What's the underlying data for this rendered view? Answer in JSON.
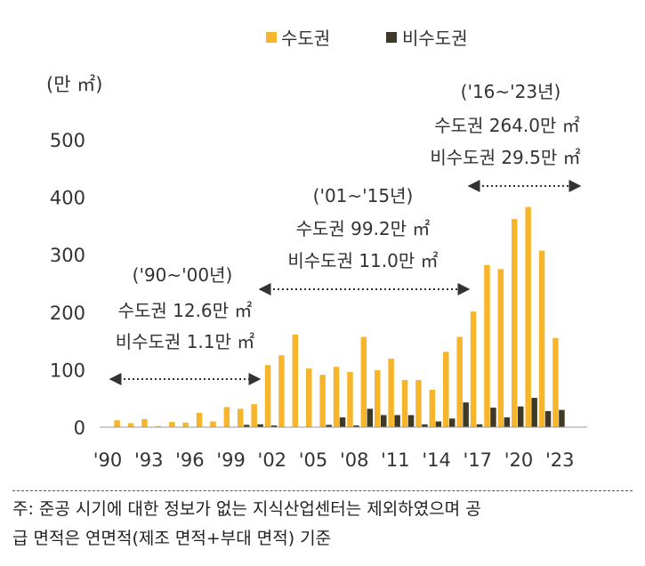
{
  "chart_data": {
    "type": "bar",
    "unit_label": "(만 ㎡)",
    "ylim": [
      0,
      500
    ],
    "yticks": [
      0,
      100,
      200,
      300,
      400,
      500
    ],
    "categories": [
      "'90",
      "'91",
      "'92",
      "'93",
      "'94",
      "'95",
      "'96",
      "'97",
      "'98",
      "'99",
      "'00",
      "'01",
      "'02",
      "'03",
      "'04",
      "'05",
      "'06",
      "'07",
      "'08",
      "'09",
      "'10",
      "'11",
      "'12",
      "'13",
      "'14",
      "'15",
      "'16",
      "'17",
      "'18",
      "'19",
      "'20",
      "'21",
      "'22",
      "'23",
      "'24"
    ],
    "xtick_labels": [
      "'90",
      "'93",
      "'96",
      "'99",
      "'02",
      "'05",
      "'08",
      "'11",
      "'14",
      "'17",
      "'20",
      "'23"
    ],
    "series": [
      {
        "name": "수도권",
        "color": "#F7B52C",
        "values": [
          0,
          12,
          7,
          14,
          2,
          9,
          8,
          25,
          10,
          35,
          32,
          40,
          108,
          125,
          161,
          102,
          91,
          105,
          96,
          157,
          99,
          119,
          82,
          82,
          65,
          131,
          157,
          201,
          282,
          275,
          362,
          383,
          307,
          155,
          0
        ]
      },
      {
        "name": "비수도권",
        "color": "#3F3A28",
        "values": [
          0,
          0,
          0,
          0,
          0,
          0,
          0,
          0,
          0,
          0,
          4,
          5,
          3,
          0,
          0,
          0,
          4,
          17,
          3,
          32,
          21,
          21,
          21,
          5,
          10,
          15,
          43,
          5,
          34,
          17,
          36,
          51,
          28,
          30,
          0
        ]
      }
    ],
    "annotations": [
      {
        "period": "('90~'00년)",
        "capital": "수도권 12.6만 ㎡",
        "noncapital": "비수도권 1.1만 ㎡"
      },
      {
        "period": "('01~'15년)",
        "capital": "수도권 99.2만 ㎡",
        "noncapital": "비수도권 11.0만 ㎡"
      },
      {
        "period": "('16~'23년)",
        "capital": "수도권 264.0만 ㎡",
        "noncapital": "비수도권 29.5만 ㎡"
      }
    ]
  },
  "footnote": {
    "line1": "주: 준공 시기에 대한 정보가 없는 지식산업센터는 제외하였으며 공",
    "line2": "급 면적은 연면적(제조 면적+부대 면적) 기준"
  }
}
